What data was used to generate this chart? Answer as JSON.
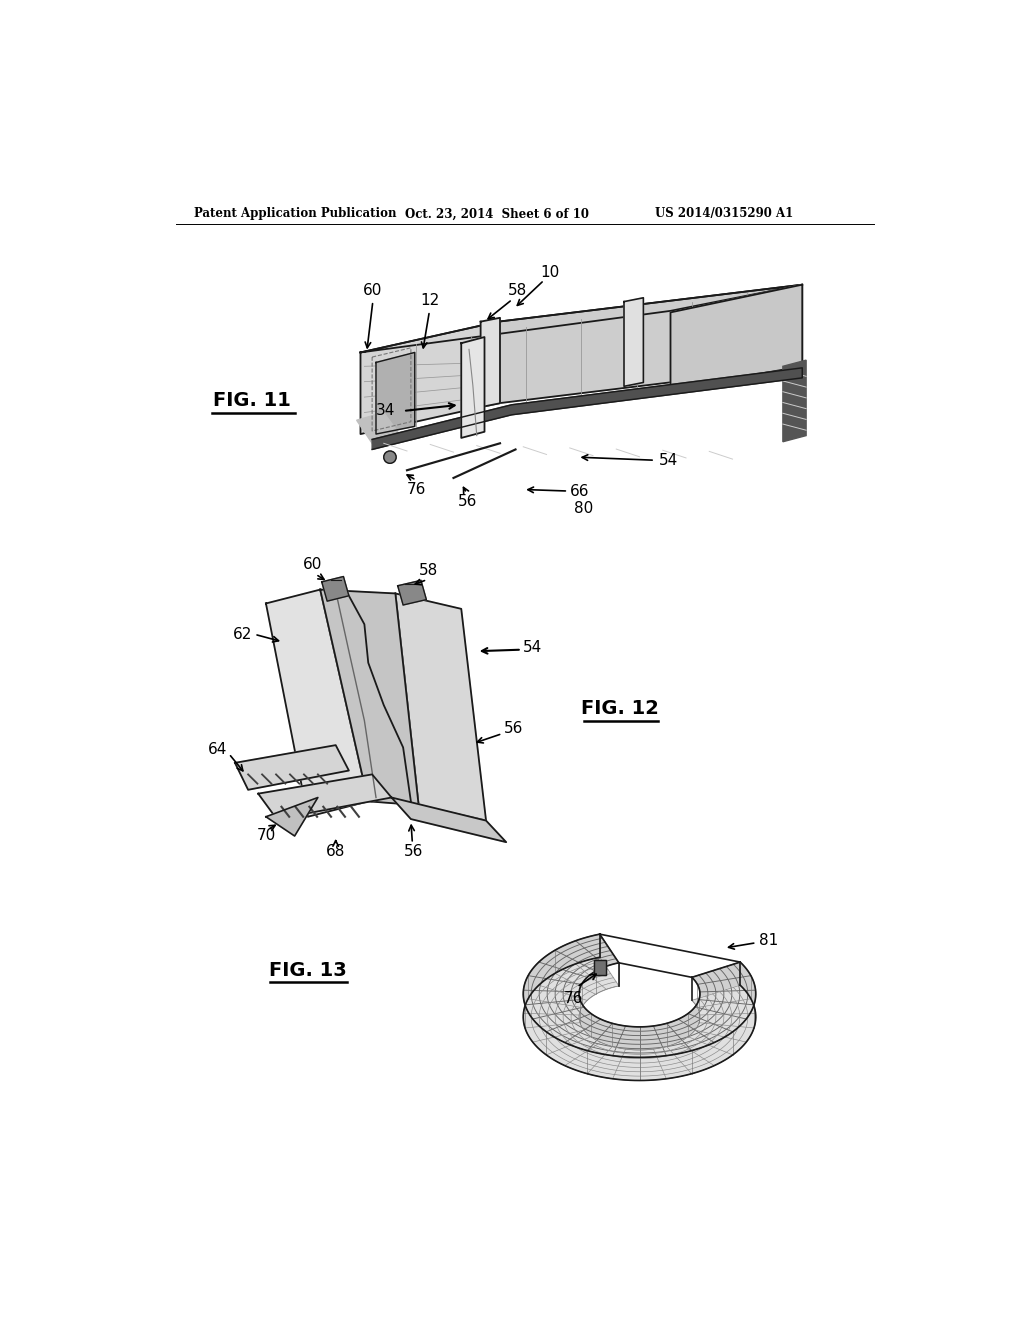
{
  "bg_color": "#ffffff",
  "header_left": "Patent Application Publication",
  "header_center": "Oct. 23, 2014  Sheet 6 of 10",
  "header_right": "US 2014/0315290 A1",
  "fig11_label": "FIG. 11",
  "fig12_label": "FIG. 12",
  "fig13_label": "FIG. 13",
  "line_color": "#1a1a1a",
  "light_gray": "#e8e8e8",
  "mid_gray": "#c0c0c0",
  "dark_gray": "#808080",
  "hatch_dark": "#404040"
}
